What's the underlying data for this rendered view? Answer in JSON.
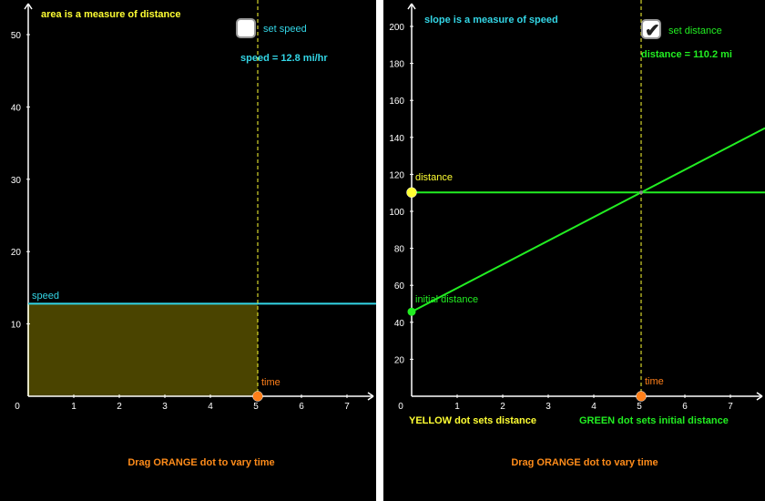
{
  "left": {
    "title": "area is a measure of distance",
    "checkbox_label": "set speed",
    "checkbox_checked": false,
    "readout": "speed = 12.8 mi/hr",
    "line_label": "speed",
    "point_label": "time",
    "footer": "Drag ORANGE dot to vary time",
    "colors": {
      "title": "#ffff33",
      "readout": "#33d6e6",
      "line": "#33d6e6",
      "area": "#4a4400",
      "point": "#ff7f1a",
      "footer": "#ff8c1a"
    }
  },
  "right": {
    "title": "slope is a measure of speed",
    "checkbox_label": "set distance",
    "checkbox_checked": true,
    "readout": "distance = 110.2 mi",
    "horizontal_label": "distance",
    "initial_label": "initial distance",
    "point_label": "time",
    "caption_yellow": "YELLOW dot sets distance",
    "caption_green": "GREEN dot sets initial distance",
    "footer": "Drag ORANGE dot to vary time",
    "colors": {
      "title": "#33d6e6",
      "readout": "#22ee22",
      "line": "#22ee22",
      "yellow": "#ffff33",
      "green": "#22ee22",
      "point": "#ff7f1a",
      "footer": "#ff8c1a"
    }
  },
  "chart_data": [
    {
      "type": "area",
      "title": "area is a measure of distance",
      "x_ticks": [
        "1",
        "2",
        "3",
        "4",
        "5",
        "6",
        "7"
      ],
      "y_ticks": [
        "10",
        "20",
        "30",
        "40",
        "50"
      ],
      "origin_label": "0",
      "xlim": [
        0,
        7.6
      ],
      "ylim": [
        0,
        50
      ],
      "speed": 12.8,
      "time": 5.04
    },
    {
      "type": "line",
      "title": "slope is a measure of speed",
      "x_ticks": [
        "1",
        "2",
        "3",
        "4",
        "5",
        "6",
        "7"
      ],
      "y_ticks": [
        "20",
        "40",
        "60",
        "80",
        "100",
        "120",
        "140",
        "160",
        "180",
        "200"
      ],
      "origin_label": "0",
      "xlim": [
        0,
        7.7
      ],
      "ylim": [
        0,
        200
      ],
      "initial_distance": 45.7,
      "distance": 110.2,
      "speed": 12.8,
      "time": 5.04
    }
  ]
}
